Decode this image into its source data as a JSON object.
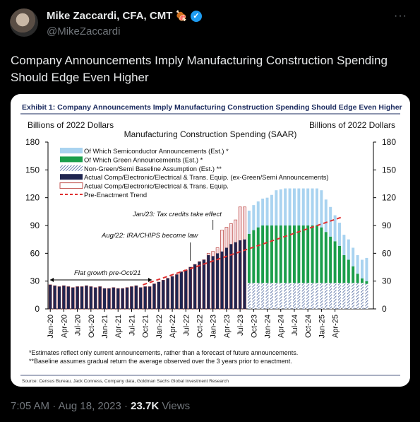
{
  "tweet": {
    "author_name": "Mike Zaccardi, CFA, CMT",
    "author_emoji": "🍖",
    "handle": "@MikeZaccardi",
    "more_label": "···",
    "text": "Company Announcements Imply Manufacturing Construction Spending Should Edge Even Higher",
    "time": "7:05 AM · Aug 18, 2023 · ",
    "views_count": "23.7K",
    "views_label": " Views"
  },
  "colors": {
    "semiconductor": "#a9d3f0",
    "green": "#1a9e4b",
    "baseline_hatch": "#2c4a8c",
    "actual_fill": "#1f2550",
    "actual_outline": "#c0504d",
    "trend": "#e03030",
    "verified": "#1d9bf0"
  },
  "chart_data": {
    "type": "bar",
    "title": "Exhibit 1: Company Announcements Imply Manufacturing Construction Spending Should Edge Even Higher",
    "subtitle": "Manufacturing Construction Spending (SAAR)",
    "ylabel_left": "Billions of 2022 Dollars",
    "ylabel_right": "Billions of 2022 Dollars",
    "ylim": [
      0,
      180
    ],
    "yticks": [
      0,
      30,
      60,
      90,
      120,
      150,
      180
    ],
    "yticks_right": [
      0,
      30,
      60,
      90,
      120,
      150,
      180
    ],
    "x_ticks": [
      "Jan-20",
      "Apr-20",
      "Jul-20",
      "Oct-20",
      "Jan-21",
      "Apr-21",
      "Jul-21",
      "Oct-21",
      "Jan-22",
      "Apr-22",
      "Jul-22",
      "Oct-22",
      "Jan-23",
      "Apr-23",
      "Jul-23",
      "Oct-23",
      "Jan-24",
      "Apr-24",
      "Jul-24",
      "Oct-24",
      "Jan-25",
      "Apr-25"
    ],
    "legend": [
      {
        "label": "Of Which Semiconductor Announcements (Est.) *",
        "style": "semiconductor"
      },
      {
        "label": "Of Which Green Announcements (Est.) *",
        "style": "green"
      },
      {
        "label": "Non-Green/Semi Baseline Assumption (Est.) **",
        "style": "hatch"
      },
      {
        "label": "Actual Comp/Electronic/Electrical & Trans. Equip. (ex-Green/Semi Announcements)",
        "style": "actual"
      },
      {
        "label": "Actual Comp/Electronic/Electrical & Trans. Equip.",
        "style": "outline"
      },
      {
        "label": "Pre-Enactment Trend",
        "style": "trend"
      }
    ],
    "annotations": [
      "Flat growth pre-Oct/21",
      "Aug/22: IRA/CHIPS become law",
      "Jan/23: Tax credits take effect"
    ],
    "series": [
      {
        "name": "Actual Comp/Electronic/Electrical & Trans. Equip. (ex-Green/Semi Announcements)",
        "values": [
          26,
          25,
          24,
          25,
          24,
          23,
          24,
          24,
          25,
          24,
          23,
          24,
          22,
          22,
          23,
          22,
          22,
          23,
          24,
          25,
          23,
          24,
          24,
          27,
          29,
          31,
          33,
          35,
          37,
          40,
          42,
          45,
          48,
          51,
          53,
          58,
          57,
          60,
          62,
          66,
          70,
          72,
          74,
          75
        ]
      },
      {
        "name": "Actual Comp/Electronic/Electrical & Trans. Equip.",
        "values": [
          26,
          25,
          24,
          25,
          24,
          23,
          24,
          24,
          25,
          24,
          23,
          24,
          22,
          22,
          23,
          22,
          22,
          23,
          24,
          25,
          23,
          24,
          24,
          27,
          29,
          31,
          33,
          35,
          37,
          40,
          42,
          45,
          48,
          51,
          53,
          60,
          62,
          66,
          85,
          88,
          92,
          96,
          110,
          110
        ]
      },
      {
        "name": "Non-Green/Semi Baseline Assumption (Est.) **",
        "values": [
          28,
          28,
          28,
          28,
          28,
          28,
          28,
          28,
          28,
          28,
          28,
          28,
          28,
          28,
          28,
          28,
          28,
          28,
          28,
          28,
          28,
          28,
          28,
          28,
          28,
          28,
          27
        ]
      },
      {
        "name": "Of Which Green Announcements (Est.) *",
        "values": [
          53,
          57,
          60,
          62,
          62,
          62,
          62,
          62,
          62,
          62,
          62,
          62,
          62,
          62,
          62,
          62,
          60,
          55,
          50,
          45,
          40,
          30,
          25,
          18,
          10,
          5,
          3
        ]
      },
      {
        "name": "Of Which Semiconductor Announcements (Est.) *",
        "values": [
          25,
          27,
          28,
          29,
          30,
          33,
          38,
          39,
          40,
          40,
          40,
          40,
          40,
          40,
          40,
          40,
          40,
          35,
          32,
          28,
          25,
          22,
          22,
          20,
          20,
          20,
          25
        ]
      }
    ],
    "pre_enactment_trend": {
      "x_start": "Oct-21",
      "y_start": 26,
      "x_end": "Jun-25",
      "y_end": 99
    },
    "footnotes": [
      "*Estimates reflect only current announcements, rather than a forecast of future announcements.",
      "**Baseline assumes gradual return the average observed over the 3 years prior to enactment."
    ],
    "source": "Source: Census Bureau, Jack Conness, Company data, Goldman Sachs Global Investment Research",
    "grid": false
  }
}
